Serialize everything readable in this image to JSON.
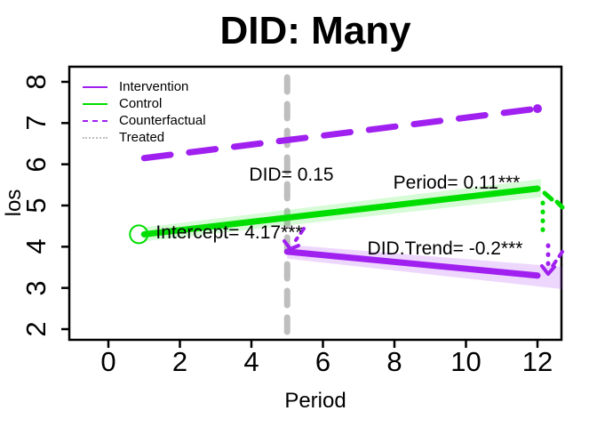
{
  "title": "DID: Many",
  "axes": {
    "x_label": "Period",
    "y_label": "los",
    "x_ticks": [
      0,
      2,
      4,
      6,
      8,
      10,
      12
    ],
    "y_ticks": [
      2,
      3,
      4,
      5,
      6,
      7,
      8
    ]
  },
  "legend": {
    "items": [
      {
        "label": "Intervention",
        "color": "#A020F0",
        "style": "solid"
      },
      {
        "label": "Control",
        "color": "#00DE00",
        "style": "solid"
      },
      {
        "label": "Counterfactual",
        "color": "#A020F0",
        "style": "dashed"
      },
      {
        "label": "Treated",
        "color": "#BEBEBE",
        "style": "dotted"
      }
    ]
  },
  "annotations": [
    {
      "name": "did",
      "text": "DID= 0.15"
    },
    {
      "name": "period-coef",
      "text": "Period= 0.11***"
    },
    {
      "name": "intercept",
      "text": "Intercept= 4.17***"
    },
    {
      "name": "did-trend",
      "text": "DID.Trend= -0.2***"
    }
  ],
  "colors": {
    "purple": "#A020F0",
    "green": "#00DE00",
    "gray": "#BEBEBE",
    "green_band": "rgba(0,230,0,0.16)",
    "purple_band": "rgba(160,32,240,0.18)"
  },
  "chart_data": {
    "type": "line",
    "title": "DID: Many",
    "xlabel": "Period",
    "ylabel": "los",
    "xlim": [
      -1.1,
      12.8
    ],
    "ylim": [
      1.75,
      8.35
    ],
    "x_ticks": [
      0,
      2,
      4,
      6,
      8,
      10,
      12
    ],
    "y_ticks": [
      2,
      3,
      4,
      5,
      6,
      7,
      8
    ],
    "grid": false,
    "legend_position": "topleft",
    "series": [
      {
        "name": "Counterfactual",
        "color": "#A020F0",
        "style": "dashed",
        "x": [
          1,
          12
        ],
        "y": [
          6.15,
          7.35
        ],
        "end_dot": true
      },
      {
        "name": "Control",
        "color": "#00DE00",
        "style": "solid",
        "x": [
          1,
          12
        ],
        "y": [
          4.3,
          5.41
        ],
        "band_x": [
          1,
          12.1
        ],
        "band": [
          0.17,
          0.22
        ],
        "band_color": "rgba(0,230,0,0.16)",
        "start_ring": true
      },
      {
        "name": "Intervention",
        "color": "#A020F0",
        "style": "solid",
        "x": [
          5,
          12
        ],
        "y": [
          3.88,
          3.3
        ],
        "band_x": [
          5,
          12.7
        ],
        "band": [
          0.17,
          0.27
        ],
        "band_color": "rgba(160,32,240,0.18)"
      }
    ],
    "vline": {
      "x": 5,
      "color": "#BEBEBE",
      "style": "dashed",
      "legend_label": "Treated"
    },
    "coefficients": {
      "Intercept": 4.17,
      "Period": 0.11,
      "DID": 0.15,
      "DID_Trend": -0.2
    },
    "annotations": [
      "DID= 0.15",
      "Period= 0.11***",
      "Intercept= 4.17***",
      "DID.Trend= -0.2***"
    ]
  }
}
